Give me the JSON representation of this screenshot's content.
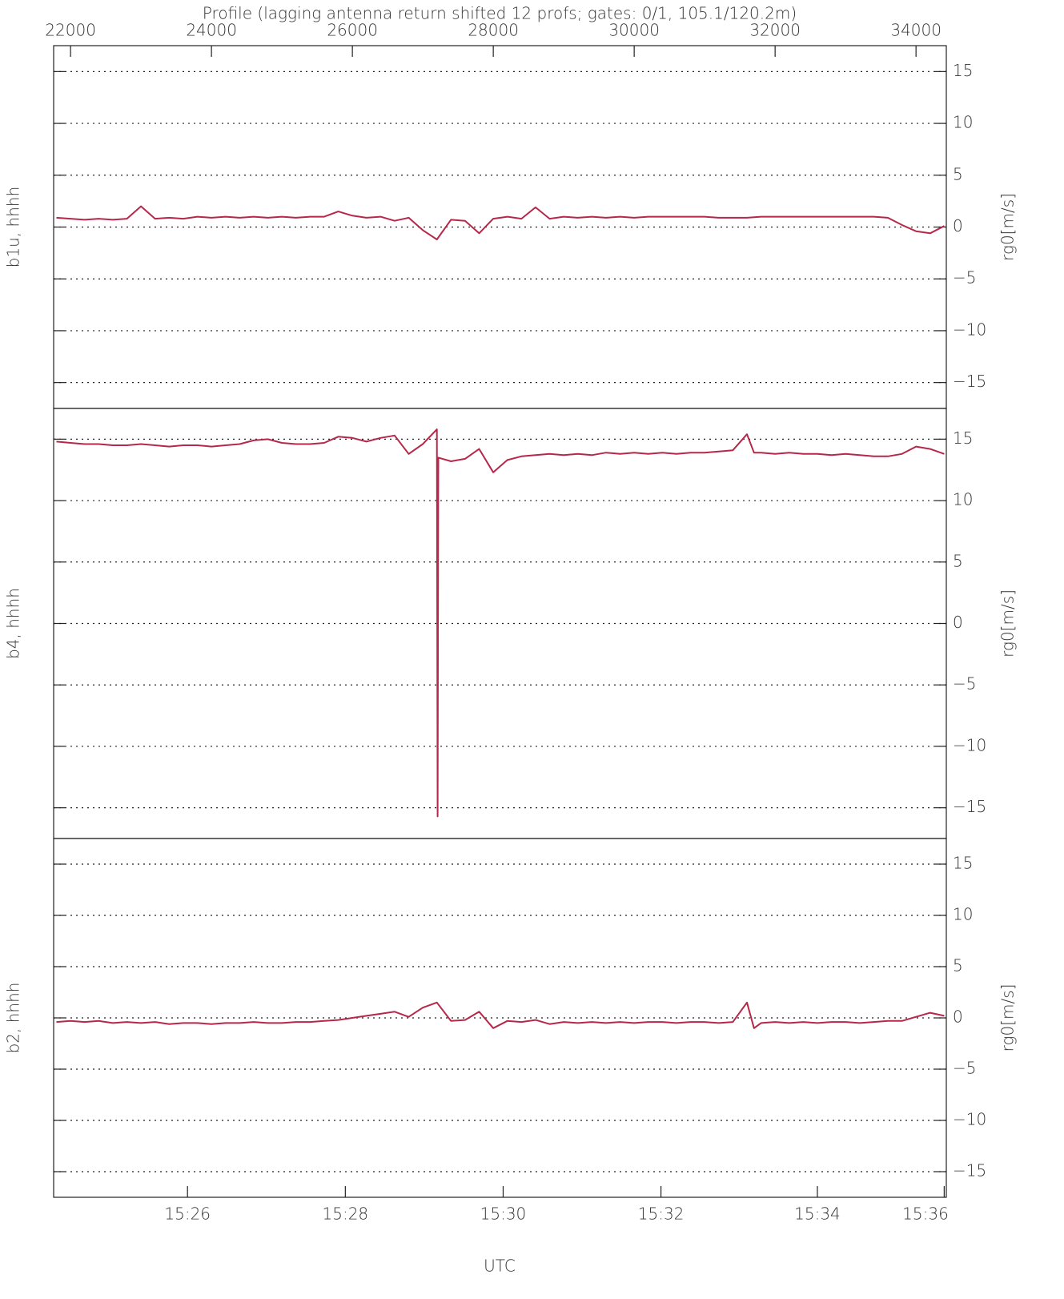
{
  "chart_data": [
    {
      "type": "line",
      "title": "Profile (lagging antenna return shifted 12 profs; gates: 0/1, 105.1/120.2m)",
      "ylabel": "b1u, hhhh",
      "y2label": "rg0[m/s]",
      "xlim": [
        21760,
        34430
      ],
      "xticks": [
        22000,
        24000,
        26000,
        28000,
        30000,
        32000,
        34000
      ],
      "ylim": [
        -17.5,
        17.5
      ],
      "yticks": [
        {
          "value": 15,
          "label": "15"
        },
        {
          "value": 10,
          "label": "10"
        },
        {
          "value": 5,
          "label": "5"
        },
        {
          "value": 0,
          "label": "0"
        },
        {
          "value": -5,
          "label": "−5"
        },
        {
          "value": -10,
          "label": "−10"
        },
        {
          "value": -15,
          "label": "−15"
        }
      ],
      "grid": true,
      "x": [
        21800,
        22000,
        22200,
        22400,
        22600,
        22800,
        23000,
        23200,
        23400,
        23600,
        23800,
        24000,
        24200,
        24400,
        24600,
        24800,
        25000,
        25200,
        25400,
        25600,
        25800,
        26000,
        26200,
        26400,
        26600,
        26800,
        27000,
        27200,
        27400,
        27600,
        27800,
        28000,
        28200,
        28400,
        28600,
        28800,
        29000,
        29200,
        29400,
        29600,
        29800,
        30000,
        30200,
        30400,
        30600,
        30800,
        31000,
        31200,
        31400,
        31600,
        31800,
        32000,
        32200,
        32400,
        32600,
        32800,
        33000,
        33200,
        33400,
        33600,
        33800,
        34000,
        34200,
        34400
      ],
      "series": [
        {
          "color": "#b5284a",
          "values": [
            0.9,
            0.8,
            0.7,
            0.8,
            0.7,
            0.8,
            2.0,
            0.8,
            0.9,
            0.8,
            1.0,
            0.9,
            1.0,
            0.9,
            1.0,
            0.9,
            1.0,
            0.9,
            1.0,
            1.0,
            1.5,
            1.1,
            0.9,
            1.0,
            0.6,
            0.9,
            -0.3,
            -1.2,
            0.7,
            0.6,
            -0.6,
            0.8,
            1.0,
            0.8,
            1.9,
            0.8,
            1.0,
            0.9,
            1.0,
            0.9,
            1.0,
            0.9,
            1.0,
            1.0,
            1.0,
            1.0,
            1.0,
            0.9,
            0.9,
            0.9,
            1.0,
            1.0,
            1.0,
            1.0,
            1.0,
            1.0,
            1.0,
            1.0,
            1.0,
            0.9,
            0.2,
            -0.4,
            -0.6,
            0.1
          ]
        }
      ]
    },
    {
      "type": "line",
      "ylabel": "b4, hhhh",
      "y2label": "rg0[m/s]",
      "xlim": [
        21760,
        34430
      ],
      "ylim": [
        -17.5,
        17.5
      ],
      "yticks": [
        {
          "value": 15,
          "label": "15"
        },
        {
          "value": 10,
          "label": "10"
        },
        {
          "value": 5,
          "label": "5"
        },
        {
          "value": 0,
          "label": "0"
        },
        {
          "value": -5,
          "label": "−5"
        },
        {
          "value": -10,
          "label": "−10"
        },
        {
          "value": -15,
          "label": "−15"
        }
      ],
      "grid": true,
      "x": [
        21800,
        22000,
        22200,
        22400,
        22600,
        22800,
        23000,
        23200,
        23400,
        23600,
        23800,
        24000,
        24200,
        24400,
        24600,
        24800,
        25000,
        25200,
        25400,
        25600,
        25800,
        26000,
        26200,
        26400,
        26600,
        26800,
        27000,
        27200,
        27210,
        27220,
        27400,
        27600,
        27800,
        28000,
        28200,
        28400,
        28600,
        28800,
        29000,
        29200,
        29400,
        29600,
        29800,
        30000,
        30200,
        30400,
        30600,
        30800,
        31000,
        31200,
        31400,
        31600,
        31700,
        31800,
        32000,
        32200,
        32400,
        32600,
        32800,
        33000,
        33200,
        33400,
        33600,
        33800,
        34000,
        34200,
        34400
      ],
      "series": [
        {
          "color": "#b5284a",
          "values": [
            14.8,
            14.7,
            14.6,
            14.6,
            14.5,
            14.5,
            14.6,
            14.5,
            14.4,
            14.5,
            14.5,
            14.4,
            14.5,
            14.6,
            14.9,
            15.0,
            14.7,
            14.6,
            14.6,
            14.7,
            15.2,
            15.1,
            14.8,
            15.1,
            15.3,
            13.8,
            14.6,
            15.8,
            -15.7,
            13.5,
            13.2,
            13.4,
            14.2,
            12.3,
            13.3,
            13.6,
            13.7,
            13.8,
            13.7,
            13.8,
            13.7,
            13.9,
            13.8,
            13.9,
            13.8,
            13.9,
            13.8,
            13.9,
            13.9,
            14.0,
            14.1,
            15.4,
            13.9,
            13.9,
            13.8,
            13.9,
            13.8,
            13.8,
            13.7,
            13.8,
            13.7,
            13.6,
            13.6,
            13.8,
            14.4,
            14.2,
            13.8
          ]
        }
      ]
    },
    {
      "type": "line",
      "ylabel": "b2, hhhh",
      "y2label": "rg0[m/s]",
      "xlabel": "UTC",
      "xlim": [
        21760,
        34430
      ],
      "xticks": [
        {
          "value": 23660,
          "label": "15:26"
        },
        {
          "value": 25900,
          "label": "15:28"
        },
        {
          "value": 28140,
          "label": "15:30"
        },
        {
          "value": 30380,
          "label": "15:32"
        },
        {
          "value": 32600,
          "label": "15:34"
        },
        {
          "value": 34400,
          "label": "15:36"
        }
      ],
      "ylim": [
        -17.5,
        17.5
      ],
      "yticks": [
        {
          "value": 15,
          "label": "15"
        },
        {
          "value": 10,
          "label": "10"
        },
        {
          "value": 5,
          "label": "5"
        },
        {
          "value": 0,
          "label": "0"
        },
        {
          "value": -5,
          "label": "−5"
        },
        {
          "value": -10,
          "label": "−10"
        },
        {
          "value": -15,
          "label": "−15"
        }
      ],
      "grid": true,
      "x": [
        21800,
        22000,
        22200,
        22400,
        22600,
        22800,
        23000,
        23200,
        23400,
        23600,
        23800,
        24000,
        24200,
        24400,
        24600,
        24800,
        25000,
        25200,
        25400,
        25600,
        25800,
        26000,
        26200,
        26400,
        26600,
        26800,
        27000,
        27200,
        27400,
        27600,
        27800,
        28000,
        28200,
        28400,
        28600,
        28800,
        29000,
        29200,
        29400,
        29600,
        29800,
        30000,
        30200,
        30400,
        30600,
        30800,
        31000,
        31200,
        31400,
        31600,
        31700,
        31800,
        32000,
        32200,
        32400,
        32600,
        32800,
        33000,
        33200,
        33400,
        33600,
        33800,
        34000,
        34200,
        34400
      ],
      "series": [
        {
          "color": "#b5284a",
          "values": [
            -0.4,
            -0.3,
            -0.4,
            -0.3,
            -0.5,
            -0.4,
            -0.5,
            -0.4,
            -0.6,
            -0.5,
            -0.5,
            -0.6,
            -0.5,
            -0.5,
            -0.4,
            -0.5,
            -0.5,
            -0.4,
            -0.4,
            -0.3,
            -0.2,
            0.0,
            0.2,
            0.4,
            0.6,
            0.1,
            1.0,
            1.5,
            -0.3,
            -0.2,
            0.6,
            -1.0,
            -0.3,
            -0.4,
            -0.2,
            -0.6,
            -0.4,
            -0.5,
            -0.4,
            -0.5,
            -0.4,
            -0.5,
            -0.4,
            -0.4,
            -0.5,
            -0.4,
            -0.4,
            -0.5,
            -0.4,
            1.5,
            -1.0,
            -0.5,
            -0.4,
            -0.5,
            -0.4,
            -0.5,
            -0.4,
            -0.4,
            -0.5,
            -0.4,
            -0.3,
            -0.3,
            0.1,
            0.5,
            0.2
          ]
        }
      ]
    }
  ]
}
